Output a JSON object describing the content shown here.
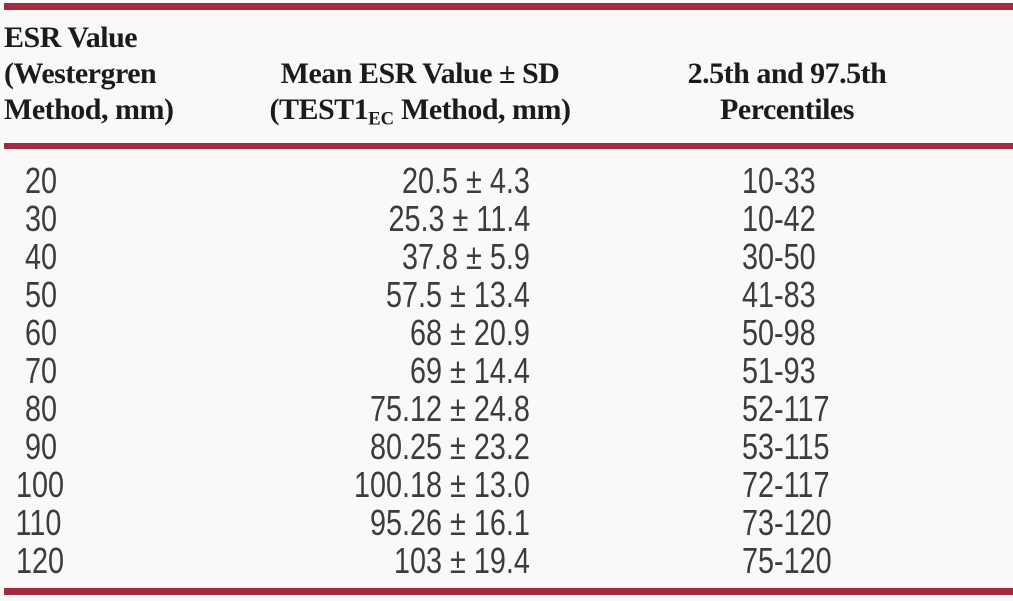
{
  "figure": {
    "kind": "journal-table-scan"
  },
  "colors": {
    "rule": "#a02b42",
    "background": "#faf9f7",
    "header_text": "#1c1a1b",
    "body_text": "#3c3c3e"
  },
  "header": {
    "col1_lines": [
      "ESR Value",
      "(Westergren",
      "Method, mm)"
    ],
    "col2_line1": "Mean ESR Value ± SD",
    "col2_line2_pre": "(TEST1",
    "col2_sub": "EC",
    "col2_line2_post": " Method, mm)",
    "col3_lines": [
      "2.5th and 97.5th",
      "Percentiles"
    ]
  },
  "table": {
    "rows": [
      {
        "esr": "20",
        "mean_sd": "20.5 ± 4.3",
        "percentiles": "10-33"
      },
      {
        "esr": "30",
        "mean_sd": "25.3 ± 11.4",
        "percentiles": "10-42"
      },
      {
        "esr": "40",
        "mean_sd": "37.8 ± 5.9",
        "percentiles": "30-50"
      },
      {
        "esr": "50",
        "mean_sd": "57.5 ± 13.4",
        "percentiles": "41-83"
      },
      {
        "esr": "60",
        "mean_sd": "68 ± 20.9",
        "percentiles": "50-98"
      },
      {
        "esr": "70",
        "mean_sd": "69 ± 14.4",
        "percentiles": "51-93"
      },
      {
        "esr": "80",
        "mean_sd": "75.12 ± 24.8",
        "percentiles": "52-117"
      },
      {
        "esr": "90",
        "mean_sd": "80.25 ± 23.2",
        "percentiles": "53-115"
      },
      {
        "esr": "100",
        "mean_sd": "100.18 ± 13.0",
        "percentiles": "72-117"
      },
      {
        "esr": "110",
        "mean_sd": "95.26 ± 16.1",
        "percentiles": "73-120"
      },
      {
        "esr": "120",
        "mean_sd": "103 ± 19.4",
        "percentiles": "75-120"
      }
    ]
  },
  "chart_data": {
    "type": "table",
    "title": "",
    "columns": [
      "ESR Value (Westergren Method, mm)",
      "Mean ESR Value ± SD (TEST1EC Method, mm)",
      "2.5th and 97.5th Percentiles"
    ],
    "rows": [
      [
        "20",
        "20.5 ± 4.3",
        "10-33"
      ],
      [
        "30",
        "25.3 ± 11.4",
        "10-42"
      ],
      [
        "40",
        "37.8 ± 5.9",
        "30-50"
      ],
      [
        "50",
        "57.5 ± 13.4",
        "41-83"
      ],
      [
        "60",
        "68 ± 20.9",
        "50-98"
      ],
      [
        "70",
        "69 ± 14.4",
        "51-93"
      ],
      [
        "80",
        "75.12 ± 24.8",
        "52-117"
      ],
      [
        "90",
        "80.25 ± 23.2",
        "53-115"
      ],
      [
        "100",
        "100.18 ± 13.0",
        "72-117"
      ],
      [
        "110",
        "95.26 ± 16.1",
        "73-120"
      ],
      [
        "120",
        "103 ± 19.4",
        "75-120"
      ]
    ]
  }
}
